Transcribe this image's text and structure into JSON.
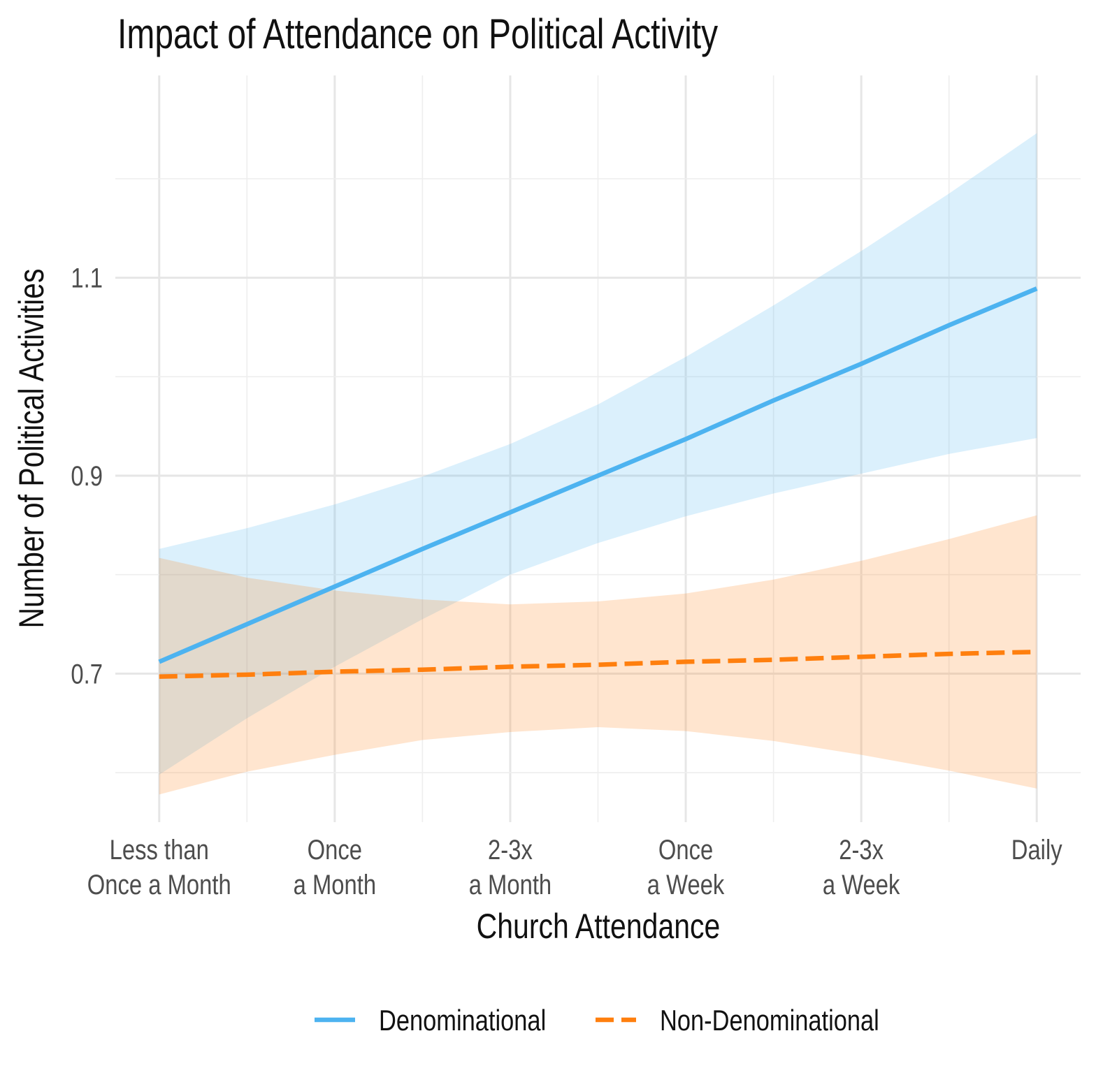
{
  "chart_data": {
    "type": "line",
    "title": "Impact of Attendance on Political Activity",
    "xlabel": "Church Attendance",
    "ylabel": "Number of Political Activities",
    "categories": [
      [
        "Less than",
        "Once a Month"
      ],
      [
        "Once",
        "a Month"
      ],
      [
        "2-3x",
        "a Month"
      ],
      [
        "Once",
        "a Week"
      ],
      [
        "2-3x",
        "a Week"
      ],
      [
        "Daily"
      ]
    ],
    "x": [
      1,
      2,
      3,
      4,
      5,
      6
    ],
    "xlim": [
      0.75,
      6.25
    ],
    "ylim": [
      0.55,
      1.31
    ],
    "y_ticks": [
      0.7,
      0.9,
      1.1
    ],
    "y_tick_labels": [
      "0.7",
      "0.9",
      "1.1"
    ],
    "grid": true,
    "legend_position": "bottom",
    "series": [
      {
        "name": "Denominational",
        "color": "#4db3f0",
        "band_color": "#d6ecfb",
        "line_style": "solid",
        "x": [
          1,
          1.5,
          2,
          2.5,
          3,
          3.5,
          4,
          4.5,
          5,
          5.5,
          6
        ],
        "values": [
          0.712,
          0.75,
          0.788,
          0.826,
          0.863,
          0.9,
          0.937,
          0.976,
          1.013,
          1.052,
          1.089
        ],
        "lower": [
          0.598,
          0.655,
          0.707,
          0.755,
          0.8,
          0.832,
          0.859,
          0.882,
          0.902,
          0.922,
          0.938
        ],
        "upper": [
          0.826,
          0.847,
          0.871,
          0.899,
          0.932,
          0.972,
          1.02,
          1.072,
          1.127,
          1.185,
          1.246
        ]
      },
      {
        "name": "Non-Denominational",
        "color": "#ff7f0e",
        "band_color": "#fde0c5",
        "line_style": "dashed",
        "x": [
          1,
          1.5,
          2,
          2.5,
          3,
          3.5,
          4,
          4.5,
          5,
          5.5,
          6
        ],
        "values": [
          0.697,
          0.699,
          0.702,
          0.704,
          0.707,
          0.709,
          0.712,
          0.714,
          0.717,
          0.72,
          0.722
        ],
        "lower": [
          0.578,
          0.601,
          0.618,
          0.633,
          0.641,
          0.646,
          0.642,
          0.632,
          0.618,
          0.602,
          0.584
        ],
        "upper": [
          0.817,
          0.797,
          0.784,
          0.775,
          0.77,
          0.773,
          0.781,
          0.795,
          0.814,
          0.836,
          0.86
        ]
      }
    ]
  }
}
